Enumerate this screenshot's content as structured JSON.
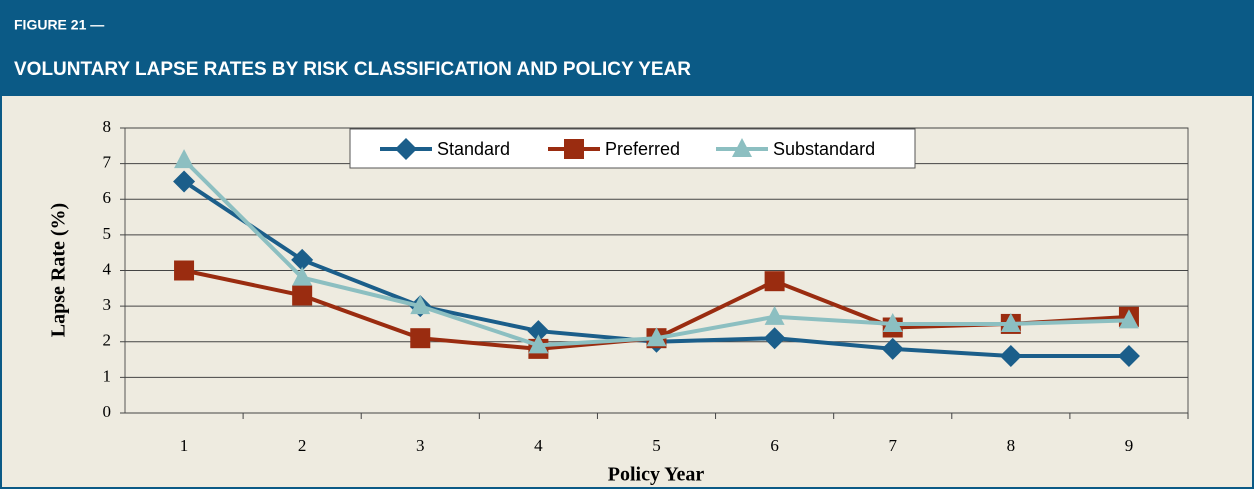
{
  "header": {
    "figure": "FIGURE 21 —",
    "title": "VOLUNTARY LAPSE RATES BY RISK CLASSIFICATION AND POLICY YEAR"
  },
  "chart_data": {
    "type": "line",
    "xlabel": "Policy Year",
    "ylabel": "Lapse Rate (%)",
    "categories": [
      "1",
      "2",
      "3",
      "4",
      "5",
      "6",
      "7",
      "8",
      "9"
    ],
    "series": [
      {
        "name": "Standard",
        "color": "#1b5e8a",
        "marker": "diamond",
        "values": [
          6.5,
          4.3,
          3.0,
          2.3,
          2.0,
          2.1,
          1.8,
          1.6,
          1.6
        ]
      },
      {
        "name": "Preferred",
        "color": "#9a2c10",
        "marker": "square",
        "values": [
          4.0,
          3.3,
          2.1,
          1.8,
          2.1,
          3.7,
          2.4,
          2.5,
          2.7
        ]
      },
      {
        "name": "Substandard",
        "color": "#8cbfc1",
        "marker": "triangle",
        "values": [
          7.1,
          3.8,
          3.0,
          1.9,
          2.1,
          2.7,
          2.5,
          2.5,
          2.6
        ]
      }
    ],
    "ylim": [
      0,
      8
    ],
    "yticks": [
      0,
      1,
      2,
      3,
      4,
      5,
      6,
      7,
      8
    ],
    "grid": true,
    "legend": "top"
  }
}
